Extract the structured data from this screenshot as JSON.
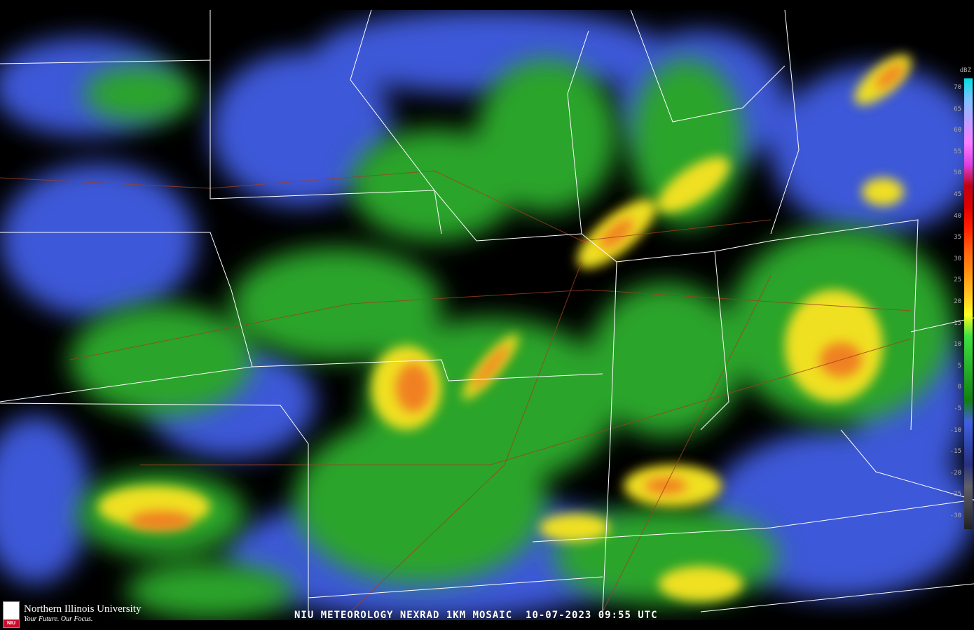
{
  "caption": {
    "title": "NIU METEOROLOGY NEXRAD 1KM MOSAIC",
    "timestamp": "10-07-2023 09:55 UTC"
  },
  "logo": {
    "name": "Northern Illinois University",
    "tagline": "Your Future. Our Focus.",
    "badge": "NIU"
  },
  "legend": {
    "unit": "dBZ",
    "labels": [
      "70",
      "65",
      "60",
      "55",
      "50",
      "45",
      "40",
      "35",
      "30",
      "25",
      "20",
      "15",
      "10",
      "5",
      "0",
      "-5",
      "-10",
      "-15",
      "-20",
      "-25",
      "-30"
    ],
    "colors": [
      "#00e0e0",
      "#80c0ff",
      "#c0a0ff",
      "#ff80ff",
      "#e040e0",
      "#c00010",
      "#e00000",
      "#ff2000",
      "#ff6010",
      "#ff9010",
      "#ffc020",
      "#ffff20",
      "#40e040",
      "#30c030",
      "#20a020",
      "#108010",
      "#4060e0",
      "#3048b0",
      "#283080",
      "#606068",
      "#404048",
      "#202024"
    ]
  },
  "radar_colors": {
    "light": "#3c58d8",
    "moderate": "#2aa42a",
    "heavy": "#f0e020",
    "intense": "#f08020",
    "severe": "#e02010"
  }
}
